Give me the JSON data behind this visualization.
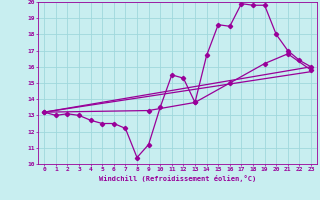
{
  "title": "",
  "xlabel": "Windchill (Refroidissement éolien,°C)",
  "bg_color": "#c8eef0",
  "line_color": "#990099",
  "xlim": [
    -0.5,
    23.5
  ],
  "ylim": [
    10,
    20
  ],
  "xticks": [
    0,
    1,
    2,
    3,
    4,
    5,
    6,
    7,
    8,
    9,
    10,
    11,
    12,
    13,
    14,
    15,
    16,
    17,
    18,
    19,
    20,
    21,
    22,
    23
  ],
  "yticks": [
    10,
    11,
    12,
    13,
    14,
    15,
    16,
    17,
    18,
    19,
    20
  ],
  "grid_color": "#a0d8dc",
  "lines": [
    {
      "x": [
        0,
        1,
        2,
        3,
        4,
        5,
        6,
        7,
        8,
        9,
        10,
        11,
        12,
        13,
        14,
        15,
        16,
        17,
        18,
        19,
        20,
        21,
        22,
        23
      ],
      "y": [
        13.2,
        13.0,
        13.1,
        13.0,
        12.7,
        12.5,
        12.5,
        12.2,
        10.4,
        11.2,
        13.5,
        15.5,
        15.3,
        13.8,
        16.7,
        18.6,
        18.5,
        19.9,
        19.8,
        19.8,
        18.0,
        17.0,
        16.4,
        16.0
      ],
      "marker": "D",
      "markersize": 2.2,
      "linewidth": 0.9
    },
    {
      "x": [
        0,
        23
      ],
      "y": [
        13.2,
        16.0
      ],
      "marker": null,
      "markersize": 0,
      "linewidth": 0.9
    },
    {
      "x": [
        0,
        23
      ],
      "y": [
        13.2,
        15.7
      ],
      "marker": null,
      "markersize": 0,
      "linewidth": 0.9
    },
    {
      "x": [
        0,
        9,
        13,
        16,
        19,
        21,
        23
      ],
      "y": [
        13.2,
        13.3,
        13.8,
        15.0,
        16.2,
        16.8,
        15.8
      ],
      "marker": "D",
      "markersize": 2.2,
      "linewidth": 0.9
    }
  ]
}
